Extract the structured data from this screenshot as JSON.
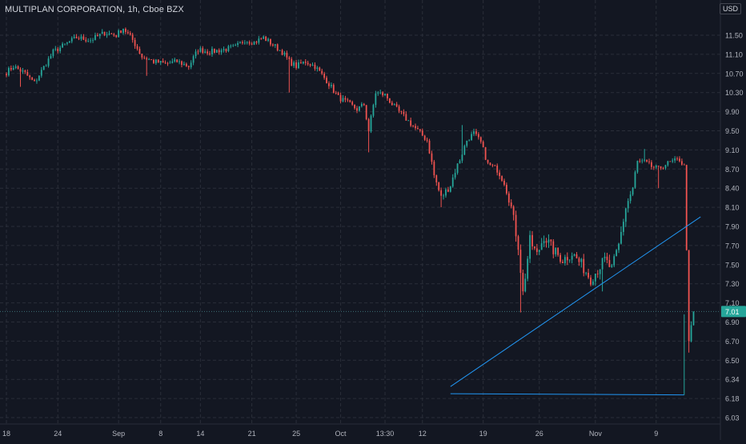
{
  "header": {
    "title": "MULTIPLAN CORPORATION, 1h, Cboe BZX",
    "currency": "USD"
  },
  "colors": {
    "background": "#131722",
    "grid": "#2a2e39",
    "axis_text": "#b2b5be",
    "up": "#26a69a",
    "down": "#ef5350",
    "trendline": "#2196f3",
    "last_price_label_bg": "#26a69a",
    "last_price_line": "#3b6e75"
  },
  "chart_data": {
    "type": "candlestick",
    "title": "MULTIPLAN CORPORATION, 1h, Cboe BZX",
    "grid": true,
    "y_axis_position": "right",
    "ylim": [
      6.05,
      11.95
    ],
    "y_ticks": [
      11.5,
      11.1,
      10.7,
      10.3,
      9.9,
      9.5,
      9.1,
      8.7,
      8.4,
      8.1,
      7.9,
      7.7,
      7.5,
      7.3,
      7.1,
      6.9,
      6.7,
      6.5,
      6.34,
      6.18,
      6.03
    ],
    "y_tick_labels": [
      "11.50",
      "11.10",
      "10.70",
      "10.30",
      "9.90",
      "9.50",
      "9.10",
      "8.70",
      "8.40",
      "8.10",
      "7.90",
      "7.70",
      "7.50",
      "7.30",
      "7.10",
      "6.90",
      "6.70",
      "6.50",
      "6.34",
      "6.18",
      "6.03"
    ],
    "x_tick_labels": [
      "18",
      "24",
      "Sep",
      "8",
      "14",
      "21",
      "25",
      "Oct",
      "13:30",
      "12",
      "19",
      "26",
      "Nov",
      "9"
    ],
    "x_tick_bar_index": [
      0,
      22,
      48,
      66,
      83,
      105,
      124,
      143,
      162,
      178,
      204,
      228,
      252,
      278
    ],
    "last_price": 7.01,
    "last_price_label": "7.01",
    "anchors": [
      [
        0,
        10.72
      ],
      [
        3,
        10.85
      ],
      [
        8,
        10.7
      ],
      [
        12,
        10.5
      ],
      [
        15,
        10.75
      ],
      [
        20,
        11.15
      ],
      [
        25,
        11.3
      ],
      [
        30,
        11.45
      ],
      [
        36,
        11.4
      ],
      [
        42,
        11.55
      ],
      [
        47,
        11.5
      ],
      [
        50,
        11.65
      ],
      [
        54,
        11.4
      ],
      [
        58,
        11.05
      ],
      [
        63,
        10.95
      ],
      [
        68,
        10.9
      ],
      [
        73,
        10.95
      ],
      [
        78,
        10.85
      ],
      [
        82,
        11.2
      ],
      [
        87,
        11.15
      ],
      [
        93,
        11.2
      ],
      [
        98,
        11.25
      ],
      [
        102,
        11.4
      ],
      [
        106,
        11.35
      ],
      [
        110,
        11.45
      ],
      [
        114,
        11.3
      ],
      [
        118,
        11.15
      ],
      [
        121,
        10.95
      ],
      [
        124,
        10.85
      ],
      [
        128,
        10.95
      ],
      [
        132,
        10.85
      ],
      [
        137,
        10.55
      ],
      [
        142,
        10.2
      ],
      [
        147,
        10.05
      ],
      [
        150,
        9.95
      ],
      [
        153,
        10.05
      ],
      [
        155,
        9.5
      ],
      [
        158,
        10.3
      ],
      [
        162,
        10.25
      ],
      [
        166,
        10.0
      ],
      [
        170,
        9.8
      ],
      [
        175,
        9.55
      ],
      [
        180,
        9.3
      ],
      [
        183,
        8.6
      ],
      [
        186,
        8.25
      ],
      [
        190,
        8.45
      ],
      [
        194,
        8.9
      ],
      [
        197,
        9.3
      ],
      [
        200,
        9.45
      ],
      [
        203,
        9.25
      ],
      [
        206,
        8.8
      ],
      [
        210,
        8.7
      ],
      [
        213,
        8.5
      ],
      [
        216,
        8.1
      ],
      [
        219,
        7.7
      ],
      [
        221,
        7.2
      ],
      [
        224,
        7.75
      ],
      [
        227,
        7.6
      ],
      [
        230,
        7.8
      ],
      [
        234,
        7.65
      ],
      [
        238,
        7.55
      ],
      [
        242,
        7.62
      ],
      [
        246,
        7.5
      ],
      [
        250,
        7.35
      ],
      [
        253,
        7.45
      ],
      [
        256,
        7.55
      ],
      [
        259,
        7.45
      ],
      [
        262,
        7.7
      ],
      [
        265,
        8.1
      ],
      [
        268,
        8.4
      ],
      [
        270,
        8.85
      ],
      [
        273,
        8.85
      ],
      [
        276,
        8.75
      ],
      [
        279,
        8.7
      ],
      [
        282,
        8.8
      ],
      [
        285,
        8.85
      ],
      [
        288,
        8.9
      ],
      [
        290,
        8.75
      ],
      [
        292,
        6.65
      ],
      [
        294,
        7.01
      ]
    ],
    "spikes": [
      {
        "bar": 6,
        "low": 10.42
      },
      {
        "bar": 60,
        "low": 10.65
      },
      {
        "bar": 121,
        "low": 10.3
      },
      {
        "bar": 155,
        "low": 9.05
      },
      {
        "bar": 186,
        "high": 8.1,
        "low": 8.1
      },
      {
        "bar": 195,
        "high": 9.62
      },
      {
        "bar": 220,
        "low": 7.0
      },
      {
        "bar": 252,
        "low": 7.28
      },
      {
        "bar": 255,
        "low": 7.22
      },
      {
        "bar": 273,
        "high": 9.12
      },
      {
        "bar": 279,
        "low": 8.4
      },
      {
        "bar": 292,
        "low": 6.58
      }
    ],
    "drawings": [
      {
        "type": "trendline",
        "from": {
          "bar": 190,
          "price": 6.28
        },
        "to": {
          "bar": 297,
          "price": 8.0
        }
      },
      {
        "type": "trendline",
        "from": {
          "bar": 190,
          "price": 6.22
        },
        "to": {
          "bar": 290,
          "price": 6.21
        }
      },
      {
        "type": "vertical",
        "bar": 290,
        "from_price": 6.21,
        "to_price": 6.98
      }
    ]
  }
}
